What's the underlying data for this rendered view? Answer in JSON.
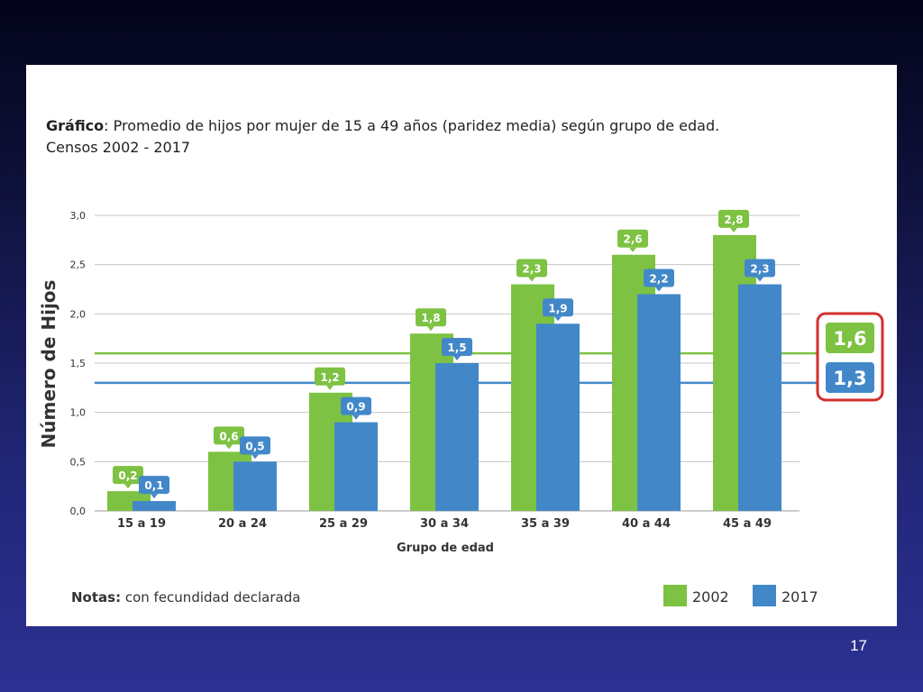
{
  "slide": {
    "number": "17"
  },
  "header": {
    "title_bold": "Gráfico",
    "title_rest": ": Promedio de hijos por mujer de 15 a 49 años (paridez media) según grupo de edad.",
    "title_line2": "Censos 2002 - 2017"
  },
  "notes": {
    "label": "Notas:",
    "text": " con fecundidad declarada"
  },
  "colors": {
    "series_2002": "#7dc242",
    "series_2017": "#4288c9",
    "highlight_box": "#d32f2f"
  },
  "chart_data": {
    "type": "bar",
    "categories": [
      "15 a 19",
      "20 a 24",
      "25 a 29",
      "30 a 34",
      "35 a 39",
      "40 a 44",
      "45 a 49"
    ],
    "series": [
      {
        "name": "2002",
        "values": [
          0.2,
          0.6,
          1.2,
          1.8,
          2.3,
          2.6,
          2.8
        ],
        "labels": [
          "0,2",
          "0,6",
          "1,2",
          "1,8",
          "2,3",
          "2,6",
          "2,8"
        ]
      },
      {
        "name": "2017",
        "values": [
          0.1,
          0.5,
          0.9,
          1.5,
          1.9,
          2.2,
          2.3
        ],
        "labels": [
          "0,1",
          "0,5",
          "0,9",
          "1,5",
          "1,9",
          "2,2",
          "2,3"
        ]
      }
    ],
    "xlabel": "Grupo de edad",
    "ylabel": "Número de Hijos",
    "ylim": [
      0,
      3
    ],
    "yticks": [
      0,
      0.5,
      1,
      1.5,
      2,
      2.5,
      3
    ],
    "ytick_labels": [
      "0,0",
      "0,5",
      "1,0",
      "1,5",
      "2,0",
      "2,5",
      "3,0"
    ],
    "grid": true,
    "legend": {
      "placement": "bottom-right",
      "entries": [
        "2002",
        "2017"
      ]
    },
    "reference_lines": [
      {
        "series": "2002",
        "value": 1.6,
        "label": "1,6"
      },
      {
        "series": "2017",
        "value": 1.3,
        "label": "1,3"
      }
    ]
  }
}
